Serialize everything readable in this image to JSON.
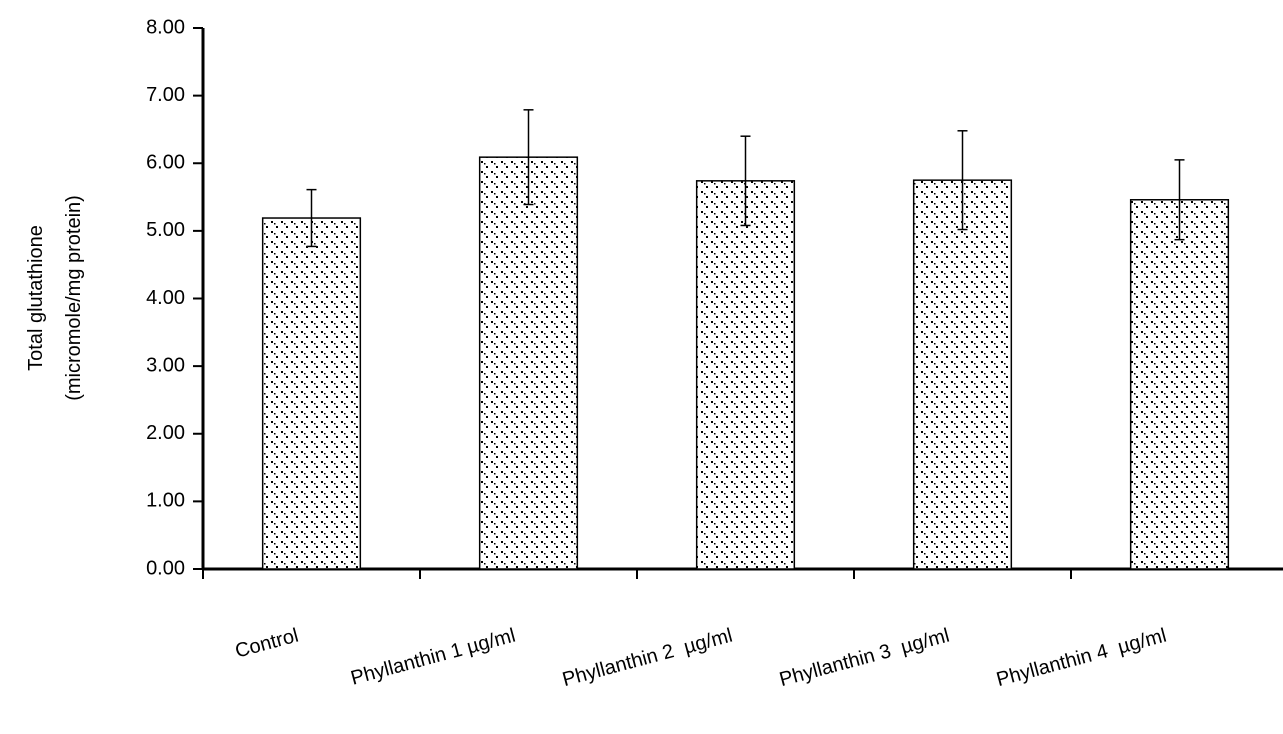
{
  "chart_data": {
    "type": "bar",
    "ylabel": [
      "Total glutathione",
      "(micromole/mg protein)"
    ],
    "categories": [
      "Control",
      "Phyllanthin 1 µg/ml",
      "Phyllanthin 2  µg/ml",
      "Phyllanthin 3  µg/ml",
      "Phyllanthin 4  µg/ml"
    ],
    "values": [
      5.19,
      6.09,
      5.74,
      5.75,
      5.46
    ],
    "errors": [
      0.42,
      0.7,
      0.66,
      0.73,
      0.59
    ],
    "color": "#000000",
    "ylim": [
      0,
      8
    ],
    "yticks": [
      {
        "value": 0,
        "label": "0.00"
      },
      {
        "value": 1,
        "label": "1.00"
      },
      {
        "value": 2,
        "label": "2.00"
      },
      {
        "value": 3,
        "label": "3.00"
      },
      {
        "value": 4,
        "label": "4.00"
      },
      {
        "value": 5,
        "label": "5.00"
      },
      {
        "value": 6,
        "label": "6.00"
      },
      {
        "value": 7,
        "label": "7.00"
      },
      {
        "value": 8,
        "label": "8.00"
      }
    ],
    "grid": false
  }
}
